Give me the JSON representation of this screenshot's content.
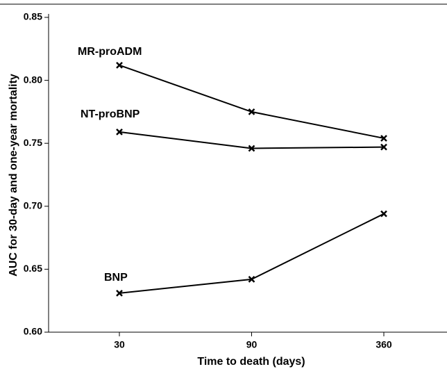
{
  "chart_data": {
    "type": "line",
    "x_label": "Time to death (days)",
    "y_label": "AUC for 30-day and one-year mortality",
    "categories": [
      "30",
      "90",
      "360"
    ],
    "series": [
      {
        "name": "MR-proADM",
        "color": "#000000",
        "values": [
          0.812,
          0.775,
          0.754
        ]
      },
      {
        "name": "NT-proBNP",
        "color": "#000000",
        "values": [
          0.759,
          0.746,
          0.747
        ]
      },
      {
        "name": "BNP",
        "color": "#000000",
        "values": [
          0.631,
          0.642,
          0.694
        ]
      }
    ],
    "ylim": [
      0.6,
      0.85
    ],
    "yticks": [
      {
        "value": 0.6,
        "label": "0.60"
      },
      0.65,
      {
        "value": 0.7,
        "label": "0.70"
      },
      0.75,
      {
        "value": 0.8,
        "label": "0.80"
      },
      0.85
    ]
  }
}
